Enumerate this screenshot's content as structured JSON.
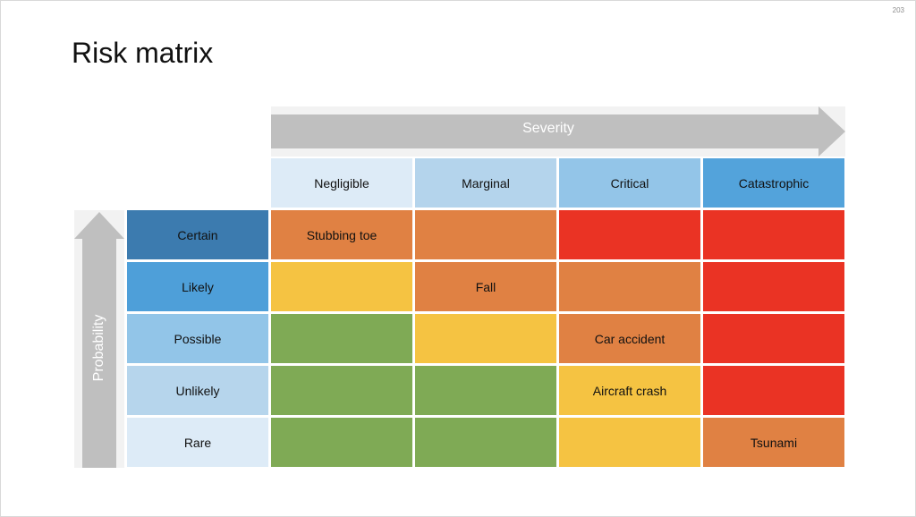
{
  "page_number": "203",
  "title": "Risk matrix",
  "severity_axis": {
    "label": "Severity",
    "columns": [
      {
        "label": "Negligible",
        "color": "#DDEBF7"
      },
      {
        "label": "Marginal",
        "color": "#B4D4EC"
      },
      {
        "label": "Critical",
        "color": "#93C5E8"
      },
      {
        "label": "Catastrophic",
        "color": "#53A3DB"
      }
    ]
  },
  "probability_axis": {
    "label": "Probability",
    "rows": [
      {
        "label": "Certain",
        "color": "#3C7BAF"
      },
      {
        "label": "Likely",
        "color": "#4E9FD9"
      },
      {
        "label": "Possible",
        "color": "#92C5E8"
      },
      {
        "label": "Unlikely",
        "color": "#B6D5EC"
      },
      {
        "label": "Rare",
        "color": "#DDEBF7"
      }
    ]
  },
  "colors": {
    "green": "#7FAA55",
    "yellow": "#F5C342",
    "orange": "#E08143",
    "red": "#EA3324",
    "arrow": "#BFBFBF",
    "arrow_bg": "#F2F2F2"
  },
  "grid": [
    [
      {
        "level": "orange",
        "text": "Stubbing toe"
      },
      {
        "level": "orange",
        "text": ""
      },
      {
        "level": "red",
        "text": ""
      },
      {
        "level": "red",
        "text": ""
      }
    ],
    [
      {
        "level": "yellow",
        "text": ""
      },
      {
        "level": "orange",
        "text": "Fall"
      },
      {
        "level": "orange",
        "text": ""
      },
      {
        "level": "red",
        "text": ""
      }
    ],
    [
      {
        "level": "green",
        "text": ""
      },
      {
        "level": "yellow",
        "text": ""
      },
      {
        "level": "orange",
        "text": "Car accident"
      },
      {
        "level": "red",
        "text": ""
      }
    ],
    [
      {
        "level": "green",
        "text": ""
      },
      {
        "level": "green",
        "text": ""
      },
      {
        "level": "yellow",
        "text": "Aircraft crash"
      },
      {
        "level": "red",
        "text": ""
      }
    ],
    [
      {
        "level": "green",
        "text": ""
      },
      {
        "level": "green",
        "text": ""
      },
      {
        "level": "yellow",
        "text": ""
      },
      {
        "level": "orange",
        "text": "Tsunami"
      }
    ]
  ]
}
